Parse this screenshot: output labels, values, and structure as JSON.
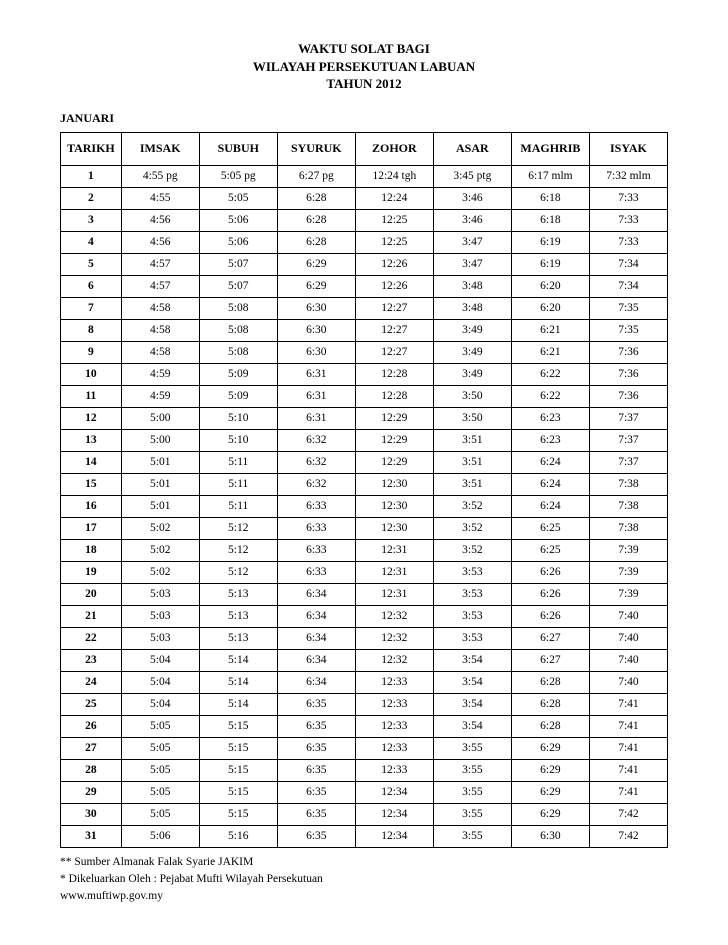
{
  "title": {
    "line1": "WAKTU SOLAT BAGI",
    "line2": "WILAYAH PERSEKUTUAN LABUAN",
    "line3": "TAHUN 2012"
  },
  "month": "JANUARI",
  "columns": [
    "TARIKH",
    "IMSAK",
    "SUBUH",
    "SYURUK",
    "ZOHOR",
    "ASAR",
    "MAGHRIB",
    "ISYAK"
  ],
  "rows": [
    [
      "1",
      "4:55 pg",
      "5:05 pg",
      "6:27 pg",
      "12:24 tgh",
      "3:45 ptg",
      "6:17 mlm",
      "7:32 mlm"
    ],
    [
      "2",
      "4:55",
      "5:05",
      "6:28",
      "12:24",
      "3:46",
      "6:18",
      "7:33"
    ],
    [
      "3",
      "4:56",
      "5:06",
      "6:28",
      "12:25",
      "3:46",
      "6:18",
      "7:33"
    ],
    [
      "4",
      "4:56",
      "5:06",
      "6:28",
      "12:25",
      "3:47",
      "6:19",
      "7:33"
    ],
    [
      "5",
      "4:57",
      "5:07",
      "6:29",
      "12:26",
      "3:47",
      "6:19",
      "7:34"
    ],
    [
      "6",
      "4:57",
      "5:07",
      "6:29",
      "12:26",
      "3:48",
      "6:20",
      "7:34"
    ],
    [
      "7",
      "4:58",
      "5:08",
      "6:30",
      "12:27",
      "3:48",
      "6:20",
      "7:35"
    ],
    [
      "8",
      "4:58",
      "5:08",
      "6:30",
      "12:27",
      "3:49",
      "6:21",
      "7:35"
    ],
    [
      "9",
      "4:58",
      "5:08",
      "6:30",
      "12:27",
      "3:49",
      "6:21",
      "7:36"
    ],
    [
      "10",
      "4:59",
      "5:09",
      "6:31",
      "12:28",
      "3:49",
      "6:22",
      "7:36"
    ],
    [
      "11",
      "4:59",
      "5:09",
      "6:31",
      "12:28",
      "3:50",
      "6:22",
      "7:36"
    ],
    [
      "12",
      "5:00",
      "5:10",
      "6:31",
      "12:29",
      "3:50",
      "6:23",
      "7:37"
    ],
    [
      "13",
      "5:00",
      "5:10",
      "6:32",
      "12:29",
      "3:51",
      "6:23",
      "7:37"
    ],
    [
      "14",
      "5:01",
      "5:11",
      "6:32",
      "12:29",
      "3:51",
      "6:24",
      "7:37"
    ],
    [
      "15",
      "5:01",
      "5:11",
      "6:32",
      "12:30",
      "3:51",
      "6:24",
      "7:38"
    ],
    [
      "16",
      "5:01",
      "5:11",
      "6:33",
      "12:30",
      "3:52",
      "6:24",
      "7:38"
    ],
    [
      "17",
      "5:02",
      "5:12",
      "6:33",
      "12:30",
      "3:52",
      "6:25",
      "7:38"
    ],
    [
      "18",
      "5:02",
      "5:12",
      "6:33",
      "12:31",
      "3:52",
      "6:25",
      "7:39"
    ],
    [
      "19",
      "5:02",
      "5:12",
      "6:33",
      "12:31",
      "3:53",
      "6:26",
      "7:39"
    ],
    [
      "20",
      "5:03",
      "5:13",
      "6:34",
      "12:31",
      "3:53",
      "6:26",
      "7:39"
    ],
    [
      "21",
      "5:03",
      "5:13",
      "6:34",
      "12:32",
      "3:53",
      "6:26",
      "7:40"
    ],
    [
      "22",
      "5:03",
      "5:13",
      "6:34",
      "12:32",
      "3:53",
      "6:27",
      "7:40"
    ],
    [
      "23",
      "5:04",
      "5:14",
      "6:34",
      "12:32",
      "3:54",
      "6:27",
      "7:40"
    ],
    [
      "24",
      "5:04",
      "5:14",
      "6:34",
      "12:33",
      "3:54",
      "6:28",
      "7:40"
    ],
    [
      "25",
      "5:04",
      "5:14",
      "6:35",
      "12:33",
      "3:54",
      "6:28",
      "7:41"
    ],
    [
      "26",
      "5:05",
      "5:15",
      "6:35",
      "12:33",
      "3:54",
      "6:28",
      "7:41"
    ],
    [
      "27",
      "5:05",
      "5:15",
      "6:35",
      "12:33",
      "3:55",
      "6:29",
      "7:41"
    ],
    [
      "28",
      "5:05",
      "5:15",
      "6:35",
      "12:33",
      "3:55",
      "6:29",
      "7:41"
    ],
    [
      "29",
      "5:05",
      "5:15",
      "6:35",
      "12:34",
      "3:55",
      "6:29",
      "7:41"
    ],
    [
      "30",
      "5:05",
      "5:15",
      "6:35",
      "12:34",
      "3:55",
      "6:29",
      "7:42"
    ],
    [
      "31",
      "5:06",
      "5:16",
      "6:35",
      "12:34",
      "3:55",
      "6:30",
      "7:42"
    ]
  ],
  "footer": {
    "line1": "** Sumber Almanak Falak Syarie JAKIM",
    "line2": " * Dikeluarkan Oleh :  Pejabat Mufti Wilayah Persekutuan",
    "line3": "   www.muftiwp.gov.my"
  }
}
